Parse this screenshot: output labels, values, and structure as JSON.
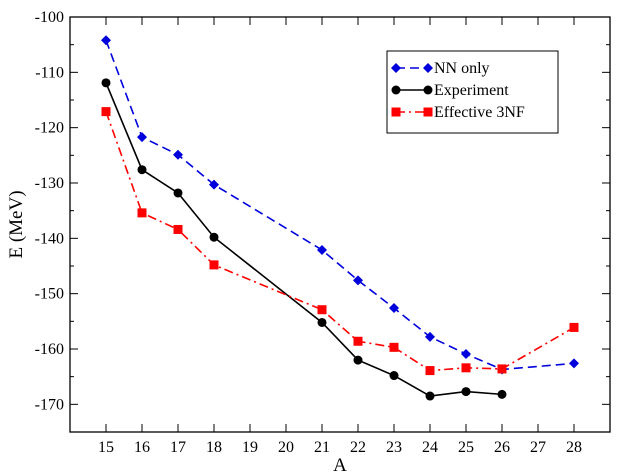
{
  "chart_data": {
    "type": "line",
    "title": "",
    "xlabel": "A",
    "ylabel": "E (MeV)",
    "xlim": [
      14,
      29
    ],
    "ylim": [
      -175,
      -100
    ],
    "x_ticks": [
      15,
      16,
      17,
      18,
      19,
      20,
      21,
      22,
      23,
      24,
      25,
      26,
      27,
      28
    ],
    "y_ticks": [
      -170,
      -160,
      -150,
      -140,
      -130,
      -120,
      -110,
      -100
    ],
    "x_tick_labels": [
      "15",
      "16",
      "17",
      "18",
      "19",
      "20",
      "21",
      "22",
      "23",
      "24",
      "25",
      "26",
      "27",
      "28"
    ],
    "y_tick_labels": [
      "-170",
      "-160",
      "-150",
      "-140",
      "-130",
      "-120",
      "-110",
      "-100"
    ],
    "grid": false,
    "legend_position": "top-right",
    "series": [
      {
        "name": "NN only",
        "color": "#0000dd",
        "line_style": "dashed",
        "marker": "diamond",
        "x": [
          15,
          16,
          17,
          18,
          21,
          22,
          23,
          24,
          25,
          26,
          28
        ],
        "y": [
          -104.2,
          -121.7,
          -124.9,
          -130.3,
          -142.1,
          -147.6,
          -152.6,
          -157.8,
          -160.9,
          -163.7,
          -162.6
        ]
      },
      {
        "name": "Experiment",
        "color": "#000000",
        "line_style": "solid",
        "marker": "circle",
        "x": [
          15,
          16,
          17,
          18,
          21,
          22,
          23,
          24,
          25,
          26
        ],
        "y": [
          -111.9,
          -127.6,
          -131.8,
          -139.8,
          -155.2,
          -162.0,
          -164.8,
          -168.5,
          -167.7,
          -168.2
        ]
      },
      {
        "name": "Effective 3NF",
        "color": "#ff0000",
        "line_style": "dash-dot",
        "marker": "square",
        "x": [
          15,
          16,
          17,
          18,
          21,
          22,
          23,
          24,
          25,
          26,
          28
        ],
        "y": [
          -117.1,
          -135.4,
          -138.4,
          -144.8,
          -152.9,
          -158.6,
          -159.7,
          -163.9,
          -163.4,
          -163.6,
          -156.1
        ]
      }
    ]
  }
}
